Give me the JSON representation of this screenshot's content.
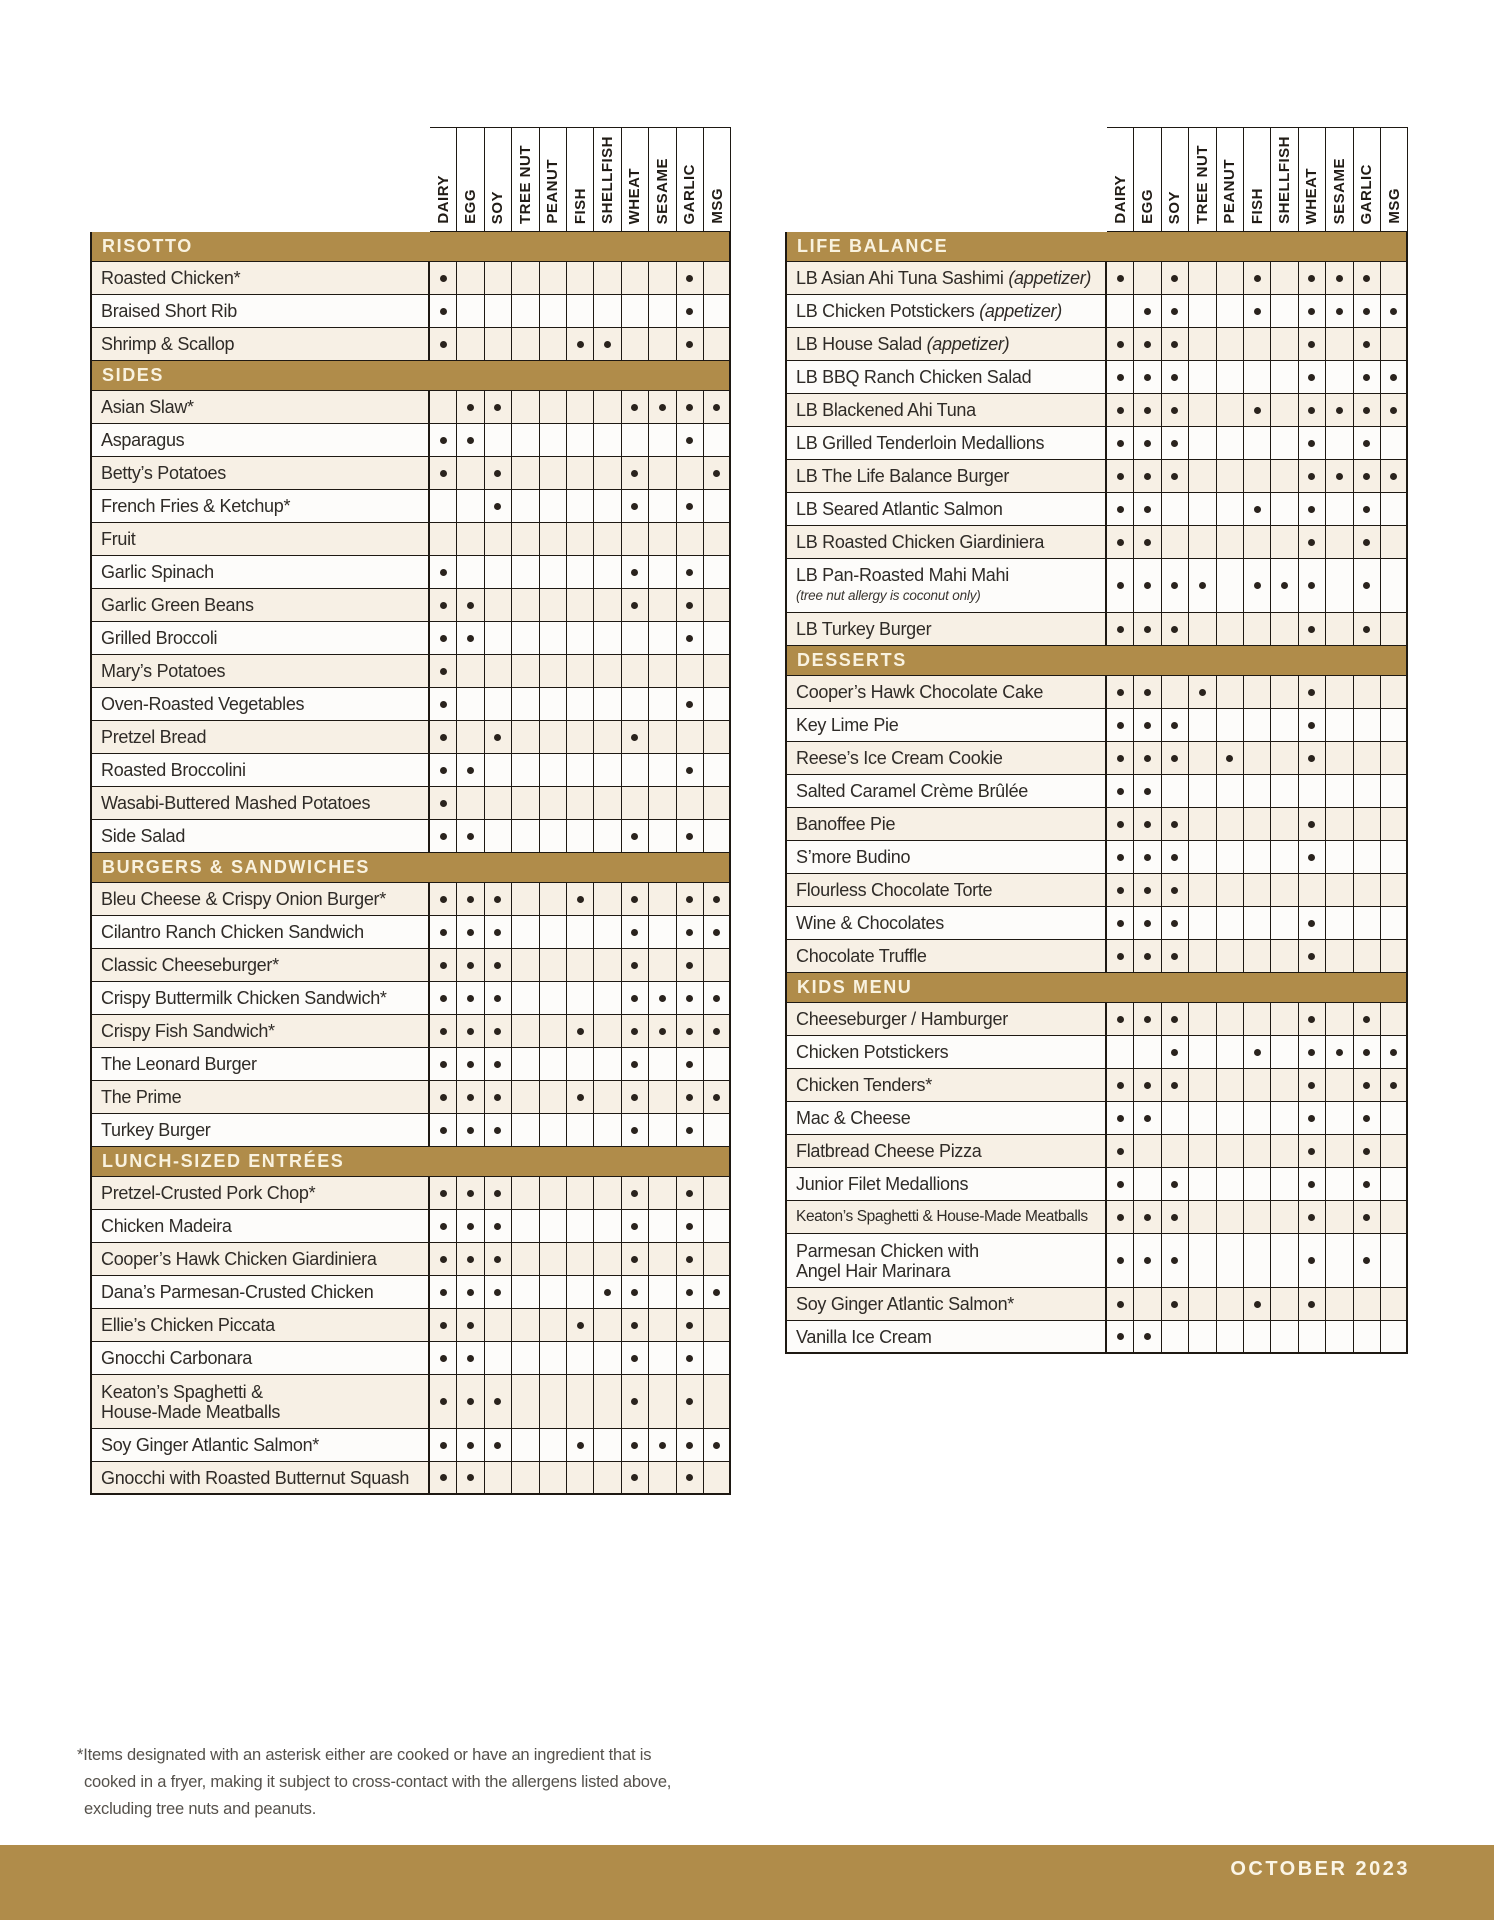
{
  "columns": [
    "DAIRY",
    "EGG",
    "SOY",
    "TREE NUT",
    "PEANUT",
    "FISH",
    "SHELLFISH",
    "WHEAT",
    "SESAME",
    "GARLIC",
    "MSG"
  ],
  "left_table": {
    "sections": [
      {
        "title": "RISOTTO",
        "rows": [
          {
            "label": "Roasted Chicken*",
            "a": [
              "DAIRY",
              "GARLIC"
            ]
          },
          {
            "label": "Braised Short Rib",
            "a": [
              "DAIRY",
              "GARLIC"
            ]
          },
          {
            "label": "Shrimp & Scallop",
            "a": [
              "DAIRY",
              "FISH",
              "SHELLFISH",
              "GARLIC"
            ]
          }
        ]
      },
      {
        "title": "SIDES",
        "rows": [
          {
            "label": "Asian Slaw*",
            "a": [
              "EGG",
              "SOY",
              "WHEAT",
              "SESAME",
              "GARLIC",
              "MSG"
            ]
          },
          {
            "label": "Asparagus",
            "a": [
              "DAIRY",
              "EGG",
              "GARLIC"
            ]
          },
          {
            "label": "Betty’s Potatoes",
            "a": [
              "DAIRY",
              "SOY",
              "WHEAT",
              "MSG"
            ]
          },
          {
            "label": "French Fries & Ketchup*",
            "a": [
              "SOY",
              "WHEAT",
              "GARLIC"
            ]
          },
          {
            "label": "Fruit",
            "a": []
          },
          {
            "label": "Garlic Spinach",
            "a": [
              "DAIRY",
              "WHEAT",
              "GARLIC"
            ]
          },
          {
            "label": "Garlic Green Beans",
            "a": [
              "DAIRY",
              "EGG",
              "WHEAT",
              "GARLIC"
            ]
          },
          {
            "label": "Grilled Broccoli",
            "a": [
              "DAIRY",
              "EGG",
              "GARLIC"
            ]
          },
          {
            "label": "Mary’s Potatoes",
            "a": [
              "DAIRY"
            ]
          },
          {
            "label": "Oven-Roasted Vegetables",
            "a": [
              "DAIRY",
              "GARLIC"
            ]
          },
          {
            "label": "Pretzel Bread",
            "a": [
              "DAIRY",
              "SOY",
              "WHEAT"
            ]
          },
          {
            "label": "Roasted Broccolini",
            "a": [
              "DAIRY",
              "EGG",
              "GARLIC"
            ]
          },
          {
            "label": "Wasabi-Buttered Mashed Potatoes",
            "a": [
              "DAIRY"
            ]
          },
          {
            "label": "Side Salad",
            "a": [
              "DAIRY",
              "EGG",
              "WHEAT",
              "GARLIC"
            ]
          }
        ]
      },
      {
        "title": "BURGERS & SANDWICHES",
        "rows": [
          {
            "label": "Bleu Cheese & Crispy Onion Burger*",
            "a": [
              "DAIRY",
              "EGG",
              "SOY",
              "FISH",
              "WHEAT",
              "GARLIC",
              "MSG"
            ]
          },
          {
            "label": "Cilantro Ranch Chicken Sandwich",
            "a": [
              "DAIRY",
              "EGG",
              "SOY",
              "WHEAT",
              "GARLIC",
              "MSG"
            ]
          },
          {
            "label": "Classic Cheeseburger*",
            "a": [
              "DAIRY",
              "EGG",
              "SOY",
              "WHEAT",
              "GARLIC"
            ]
          },
          {
            "label": "Crispy Buttermilk Chicken Sandwich*",
            "a": [
              "DAIRY",
              "EGG",
              "SOY",
              "WHEAT",
              "SESAME",
              "GARLIC",
              "MSG"
            ]
          },
          {
            "label": "Crispy Fish Sandwich*",
            "a": [
              "DAIRY",
              "EGG",
              "SOY",
              "FISH",
              "WHEAT",
              "SESAME",
              "GARLIC",
              "MSG"
            ]
          },
          {
            "label": "The Leonard Burger",
            "a": [
              "DAIRY",
              "EGG",
              "SOY",
              "WHEAT",
              "GARLIC"
            ]
          },
          {
            "label": "The Prime",
            "a": [
              "DAIRY",
              "EGG",
              "SOY",
              "FISH",
              "WHEAT",
              "GARLIC",
              "MSG"
            ]
          },
          {
            "label": "Turkey Burger",
            "a": [
              "DAIRY",
              "EGG",
              "SOY",
              "WHEAT",
              "GARLIC"
            ]
          }
        ]
      },
      {
        "title": "LUNCH-SIZED ENTRÉES",
        "rows": [
          {
            "label": "Pretzel-Crusted Pork Chop*",
            "a": [
              "DAIRY",
              "EGG",
              "SOY",
              "WHEAT",
              "GARLIC"
            ]
          },
          {
            "label": "Chicken Madeira",
            "a": [
              "DAIRY",
              "EGG",
              "SOY",
              "WHEAT",
              "GARLIC"
            ]
          },
          {
            "label": "Cooper’s Hawk Chicken Giardiniera",
            "a": [
              "DAIRY",
              "EGG",
              "SOY",
              "WHEAT",
              "GARLIC"
            ]
          },
          {
            "label": "Dana’s Parmesan-Crusted Chicken",
            "a": [
              "DAIRY",
              "EGG",
              "SOY",
              "SHELLFISH",
              "WHEAT",
              "GARLIC",
              "MSG"
            ]
          },
          {
            "label": "Ellie’s Chicken Piccata",
            "a": [
              "DAIRY",
              "EGG",
              "FISH",
              "WHEAT",
              "GARLIC"
            ]
          },
          {
            "label": "Gnocchi Carbonara",
            "a": [
              "DAIRY",
              "EGG",
              "WHEAT",
              "GARLIC"
            ]
          },
          {
            "label": "Keaton’s Spaghetti &",
            "label2": "House-Made Meatballs",
            "tall": true,
            "a": [
              "DAIRY",
              "EGG",
              "SOY",
              "WHEAT",
              "GARLIC"
            ]
          },
          {
            "label": "Soy Ginger Atlantic Salmon*",
            "a": [
              "DAIRY",
              "EGG",
              "SOY",
              "FISH",
              "WHEAT",
              "SESAME",
              "GARLIC",
              "MSG"
            ]
          },
          {
            "label": "Gnocchi with Roasted Butternut Squash",
            "a": [
              "DAIRY",
              "EGG",
              "WHEAT",
              "GARLIC"
            ]
          }
        ]
      }
    ]
  },
  "right_table": {
    "sections": [
      {
        "title": "LIFE BALANCE",
        "rows": [
          {
            "label": "LB Asian Ahi Tuna Sashimi ",
            "suffix": "(appetizer)",
            "a": [
              "DAIRY",
              "SOY",
              "FISH",
              "WHEAT",
              "SESAME",
              "GARLIC"
            ]
          },
          {
            "label": "LB Chicken Potstickers ",
            "suffix": "(appetizer)",
            "a": [
              "EGG",
              "SOY",
              "FISH",
              "WHEAT",
              "SESAME",
              "GARLIC",
              "MSG"
            ]
          },
          {
            "label": "LB House Salad ",
            "suffix": "(appetizer)",
            "a": [
              "DAIRY",
              "EGG",
              "SOY",
              "WHEAT",
              "GARLIC"
            ]
          },
          {
            "label": "LB BBQ Ranch Chicken Salad",
            "a": [
              "DAIRY",
              "EGG",
              "SOY",
              "WHEAT",
              "GARLIC",
              "MSG"
            ]
          },
          {
            "label": "LB Blackened Ahi Tuna",
            "a": [
              "DAIRY",
              "EGG",
              "SOY",
              "FISH",
              "WHEAT",
              "SESAME",
              "GARLIC",
              "MSG"
            ]
          },
          {
            "label": "LB Grilled Tenderloin Medallions",
            "a": [
              "DAIRY",
              "EGG",
              "SOY",
              "WHEAT",
              "GARLIC"
            ]
          },
          {
            "label": "LB The Life Balance Burger",
            "a": [
              "DAIRY",
              "EGG",
              "SOY",
              "WHEAT",
              "SESAME",
              "GARLIC",
              "MSG"
            ]
          },
          {
            "label": "LB Seared Atlantic Salmon",
            "a": [
              "DAIRY",
              "EGG",
              "FISH",
              "WHEAT",
              "GARLIC"
            ]
          },
          {
            "label": "LB Roasted Chicken Giardiniera",
            "a": [
              "DAIRY",
              "EGG",
              "WHEAT",
              "GARLIC"
            ]
          },
          {
            "label": "LB Pan-Roasted Mahi Mahi",
            "note": "(tree nut allergy is coconut only)",
            "tall": true,
            "a": [
              "DAIRY",
              "EGG",
              "SOY",
              "TREE NUT",
              "FISH",
              "SHELLFISH",
              "WHEAT",
              "GARLIC"
            ]
          },
          {
            "label": "LB Turkey Burger",
            "a": [
              "DAIRY",
              "EGG",
              "SOY",
              "WHEAT",
              "GARLIC"
            ]
          }
        ]
      },
      {
        "title": "DESSERTS",
        "rows": [
          {
            "label": "Cooper’s Hawk Chocolate Cake",
            "a": [
              "DAIRY",
              "EGG",
              "TREE NUT",
              "WHEAT"
            ]
          },
          {
            "label": "Key Lime Pie",
            "a": [
              "DAIRY",
              "EGG",
              "SOY",
              "WHEAT"
            ]
          },
          {
            "label": "Reese’s Ice Cream Cookie",
            "a": [
              "DAIRY",
              "EGG",
              "SOY",
              "PEANUT",
              "WHEAT"
            ]
          },
          {
            "label": "Salted Caramel Crème Brûlée",
            "a": [
              "DAIRY",
              "EGG"
            ]
          },
          {
            "label": "Banoffee Pie",
            "a": [
              "DAIRY",
              "EGG",
              "SOY",
              "WHEAT"
            ]
          },
          {
            "label": "S’more Budino",
            "a": [
              "DAIRY",
              "EGG",
              "SOY",
              "WHEAT"
            ]
          },
          {
            "label": "Flourless Chocolate Torte",
            "a": [
              "DAIRY",
              "EGG",
              "SOY"
            ]
          },
          {
            "label": "Wine & Chocolates",
            "a": [
              "DAIRY",
              "EGG",
              "SOY",
              "WHEAT"
            ]
          },
          {
            "label": "Chocolate Truffle",
            "a": [
              "DAIRY",
              "EGG",
              "SOY",
              "WHEAT"
            ]
          }
        ]
      },
      {
        "title": "KIDS MENU",
        "rows": [
          {
            "label": "Cheeseburger / Hamburger",
            "a": [
              "DAIRY",
              "EGG",
              "SOY",
              "WHEAT",
              "GARLIC"
            ]
          },
          {
            "label": "Chicken Potstickers",
            "a": [
              "SOY",
              "FISH",
              "WHEAT",
              "SESAME",
              "GARLIC",
              "MSG"
            ]
          },
          {
            "label": "Chicken Tenders*",
            "a": [
              "DAIRY",
              "EGG",
              "SOY",
              "WHEAT",
              "GARLIC",
              "MSG"
            ]
          },
          {
            "label": "Mac & Cheese",
            "a": [
              "DAIRY",
              "EGG",
              "WHEAT",
              "GARLIC"
            ]
          },
          {
            "label": "Flatbread Cheese Pizza",
            "a": [
              "DAIRY",
              "WHEAT",
              "GARLIC"
            ]
          },
          {
            "label": "Junior Filet Medallions",
            "a": [
              "DAIRY",
              "SOY",
              "WHEAT",
              "GARLIC"
            ]
          },
          {
            "label": "Keaton’s Spaghetti & House-Made Meatballs",
            "condensed": true,
            "a": [
              "DAIRY",
              "EGG",
              "SOY",
              "WHEAT",
              "GARLIC"
            ]
          },
          {
            "label": "Parmesan Chicken with",
            "label2": "Angel Hair Marinara",
            "tall": true,
            "a": [
              "DAIRY",
              "EGG",
              "SOY",
              "WHEAT",
              "GARLIC"
            ]
          },
          {
            "label": "Soy Ginger Atlantic Salmon*",
            "a": [
              "DAIRY",
              "SOY",
              "FISH",
              "WHEAT"
            ]
          },
          {
            "label": "Vanilla Ice Cream",
            "a": [
              "DAIRY",
              "EGG"
            ]
          }
        ]
      }
    ]
  },
  "footnote": {
    "lines": [
      "*Items designated with an asterisk either are cooked or have an ingredient that is",
      "cooked in a fryer, making it subject to cross-contact with the allergens listed above,",
      "excluding tree nuts and peanuts."
    ]
  },
  "footer": {
    "date": "OCTOBER 2023"
  },
  "colors": {
    "gold": "#b08c4a",
    "band_text": "#f9f2df",
    "cream_row": "#f7f0e5",
    "white_row": "#fdfcfa",
    "border": "#1e1913",
    "dot": "#2a231d"
  }
}
